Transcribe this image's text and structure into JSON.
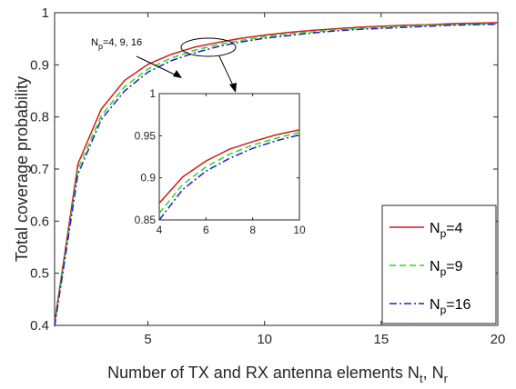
{
  "chart_data": {
    "type": "line",
    "xlabel": "Number of TX and RX antenna elements N",
    "xlabel_sub_t": "t",
    "xlabel_mid": ", N",
    "xlabel_sub_r": "r",
    "ylabel": "Total coverage probability",
    "xlim": [
      1,
      20
    ],
    "ylim": [
      0.4,
      1.0
    ],
    "xticks": [
      5,
      10,
      15,
      20
    ],
    "yticks": [
      0.4,
      0.5,
      0.6,
      0.7,
      0.8,
      0.9,
      1.0
    ],
    "grid": false,
    "legend_position": "bottom-right",
    "series": [
      {
        "legend_prefix": "N",
        "legend_sub": "p",
        "legend_suffix": "=4",
        "color": "#d7191c",
        "dash": "solid",
        "x": [
          1,
          2,
          3,
          4,
          5,
          6,
          7,
          8,
          9,
          10,
          11,
          12,
          13,
          14,
          15,
          16,
          17,
          18,
          19,
          20
        ],
        "y": [
          0.405,
          0.71,
          0.815,
          0.87,
          0.901,
          0.92,
          0.934,
          0.943,
          0.951,
          0.957,
          0.962,
          0.966,
          0.969,
          0.972,
          0.974,
          0.976,
          0.977,
          0.979,
          0.98,
          0.981
        ]
      },
      {
        "legend_prefix": "N",
        "legend_sub": "p",
        "legend_suffix": "=9",
        "color": "#22dd22",
        "dash": "dashed",
        "x": [
          1,
          2,
          3,
          4,
          5,
          6,
          7,
          8,
          9,
          10,
          11,
          12,
          13,
          14,
          15,
          16,
          17,
          18,
          19,
          20
        ],
        "y": [
          0.4,
          0.7,
          0.802,
          0.858,
          0.892,
          0.913,
          0.928,
          0.939,
          0.947,
          0.954,
          0.959,
          0.963,
          0.967,
          0.97,
          0.972,
          0.974,
          0.976,
          0.977,
          0.978,
          0.979
        ]
      },
      {
        "legend_prefix": "N",
        "legend_sub": "p",
        "legend_suffix": "=16",
        "color": "#1f1fc8",
        "dash": "dashdot",
        "x": [
          1,
          2,
          3,
          4,
          5,
          6,
          7,
          8,
          9,
          10,
          11,
          12,
          13,
          14,
          15,
          16,
          17,
          18,
          19,
          20
        ],
        "y": [
          0.398,
          0.69,
          0.795,
          0.85,
          0.886,
          0.908,
          0.923,
          0.935,
          0.944,
          0.951,
          0.956,
          0.961,
          0.965,
          0.968,
          0.97,
          0.972,
          0.974,
          0.976,
          0.977,
          0.978
        ]
      }
    ],
    "annotation": {
      "prefix": "N",
      "sub": "p",
      "suffix": "=4, 9, 16"
    },
    "inset": {
      "xlim": [
        4,
        10
      ],
      "ylim": [
        0.85,
        1.0
      ],
      "xticks": [
        4,
        6,
        8,
        10
      ],
      "yticks": [
        0.85,
        0.9,
        0.95,
        1.0
      ],
      "ytick_labels": [
        "0.85",
        "0.9",
        "0.95",
        "1"
      ]
    },
    "ytick_labels": [
      "0.4",
      "0.5",
      "0.6",
      "0.7",
      "0.8",
      "0.9",
      "1"
    ]
  }
}
